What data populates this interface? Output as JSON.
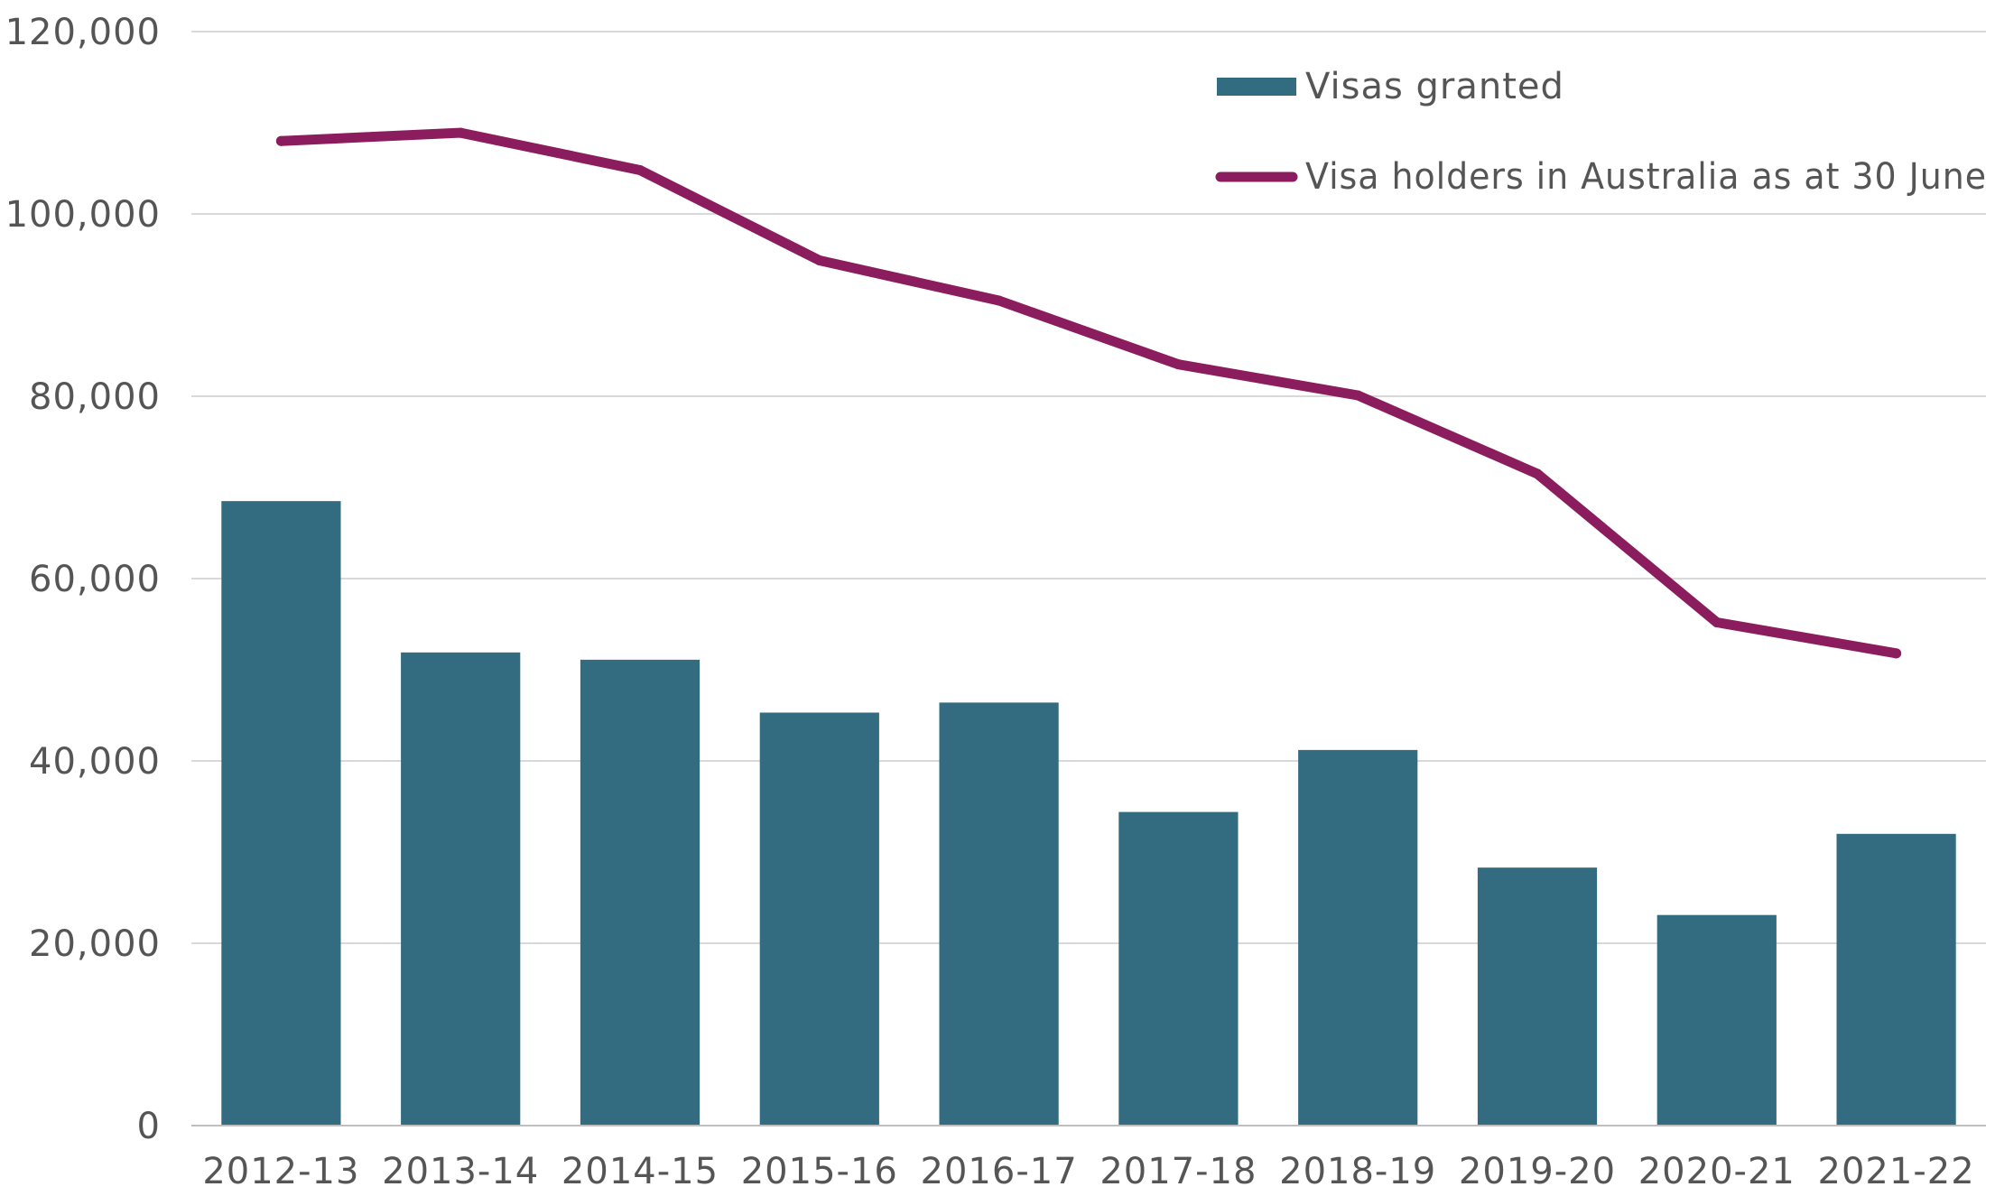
{
  "chart_data": {
    "type": "bar",
    "title": "",
    "xlabel": "",
    "ylabel": "",
    "categories": [
      "2012-13",
      "2013-14",
      "2014-15",
      "2015-16",
      "2016-17",
      "2017-18",
      "2018-19",
      "2019-20",
      "2020-21",
      "2021-22"
    ],
    "ylim": [
      0,
      120000
    ],
    "yticks": [
      0,
      20000,
      40000,
      60000,
      80000,
      100000,
      120000
    ],
    "ytick_labels": [
      "0",
      "20,000",
      "40,000",
      "60,000",
      "80,000",
      "100,000",
      "120,000"
    ],
    "grid": true,
    "legend_position": "top-right",
    "series": [
      {
        "name": "Visas granted",
        "type": "bar",
        "color": "#336b80",
        "values": [
          68500,
          51900,
          51100,
          45300,
          46400,
          34400,
          41200,
          28300,
          23100,
          32000
        ]
      },
      {
        "name": "Visa holders in Australia as at 30 June",
        "type": "line",
        "color": "#8b1d5f",
        "values": [
          108000,
          108900,
          104800,
          94900,
          90500,
          83500,
          80100,
          71500,
          55200,
          51800
        ]
      }
    ]
  }
}
